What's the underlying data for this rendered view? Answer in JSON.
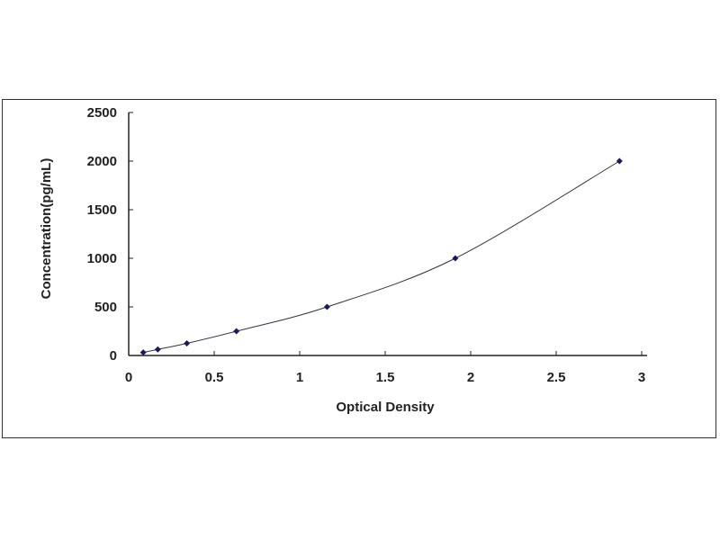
{
  "chart_data": {
    "type": "scatter",
    "title": "",
    "xlabel": "Optical Density",
    "ylabel": "Concentration(pg/mL)",
    "xlim": [
      0,
      3
    ],
    "ylim": [
      0,
      2500
    ],
    "xticks": [
      "0",
      "0.5",
      "1",
      "1.5",
      "2",
      "2.5",
      "3"
    ],
    "yticks": [
      "0",
      "500",
      "1000",
      "1500",
      "2000",
      "2500"
    ],
    "grid": false,
    "trendline": "smooth curve",
    "point_color": "#1a1a5a",
    "line_color": "#333344",
    "series": [
      {
        "x": [
          0.085,
          0.17,
          0.34,
          0.63,
          1.16,
          1.91,
          2.87
        ],
        "y": [
          31.25,
          62.5,
          125,
          250,
          500,
          1000,
          2000
        ]
      }
    ]
  }
}
